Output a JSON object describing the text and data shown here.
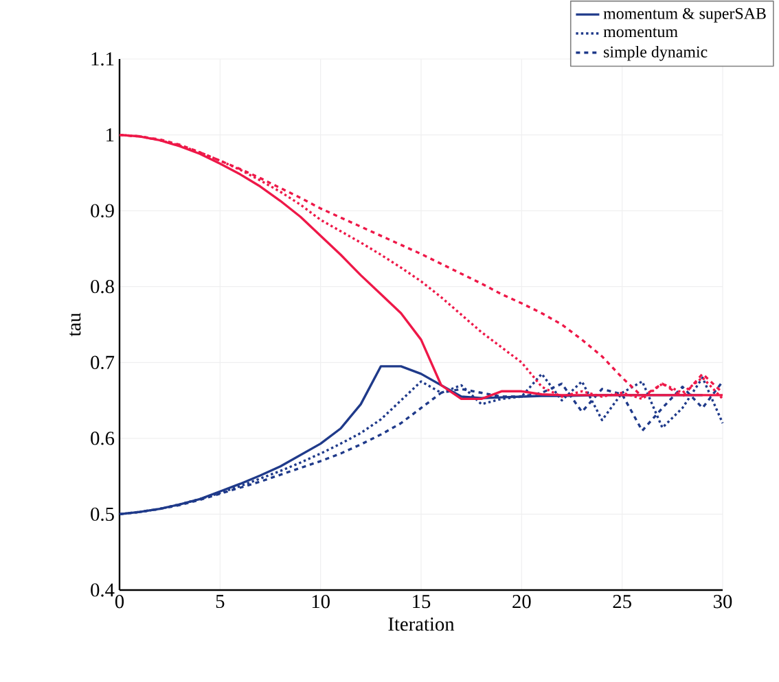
{
  "chart_data": {
    "type": "line",
    "xlabel": "Iteration",
    "ylabel": "tau",
    "x": [
      0,
      1,
      2,
      3,
      4,
      5,
      6,
      7,
      8,
      9,
      10,
      11,
      12,
      13,
      14,
      15,
      16,
      17,
      18,
      19,
      20,
      21,
      22,
      23,
      24,
      25,
      26,
      27,
      28,
      29,
      30
    ],
    "xlim": [
      0,
      30
    ],
    "xticks": [
      0,
      5,
      10,
      15,
      20,
      25,
      30
    ],
    "ylim": [
      0.4,
      1.1
    ],
    "yticks": [
      0.4,
      0.5,
      0.6,
      0.7,
      0.8,
      0.9,
      1,
      1.1
    ],
    "grid": true,
    "legend": "top right",
    "marker": "none",
    "series": [
      {
        "name": "momentum & superSAB",
        "color": "#1f3a8a",
        "line_style": "solid",
        "values": [
          0.5,
          0.503,
          0.507,
          0.513,
          0.52,
          0.53,
          0.54,
          0.551,
          0.563,
          0.578,
          0.593,
          0.613,
          0.645,
          0.695,
          0.695,
          0.685,
          0.67,
          0.655,
          0.653,
          0.654,
          0.655,
          0.656,
          0.656,
          null,
          0.657,
          0.657,
          0.657,
          null,
          0.657,
          0.657,
          null
        ]
      },
      {
        "name": "momentum",
        "color": "#1f3a8a",
        "line_style": "dotted",
        "values": [
          0.5,
          0.503,
          0.507,
          0.513,
          0.52,
          0.528,
          0.537,
          0.547,
          0.557,
          0.568,
          0.58,
          0.593,
          0.607,
          0.625,
          0.65,
          0.675,
          0.66,
          0.67,
          0.645,
          0.652,
          0.655,
          0.685,
          0.65,
          0.675,
          0.624,
          0.66,
          0.675,
          0.614,
          0.64,
          0.68,
          0.62
        ]
      },
      {
        "name": "simple dynamic",
        "color": "#1f3a8a",
        "line_style": "dashed",
        "values": [
          0.5,
          0.503,
          0.507,
          0.512,
          0.519,
          0.527,
          0.535,
          0.543,
          0.552,
          0.561,
          0.57,
          0.58,
          0.592,
          0.605,
          0.62,
          0.64,
          0.66,
          0.665,
          0.66,
          0.655,
          0.655,
          0.66,
          0.672,
          0.635,
          0.665,
          0.658,
          0.61,
          0.64,
          0.668,
          0.64,
          0.675
        ]
      },
      {
        "color": "#ee1848",
        "line_style": "solid",
        "values": [
          1.0,
          0.998,
          0.993,
          0.985,
          0.975,
          0.962,
          0.948,
          0.932,
          0.913,
          0.892,
          0.867,
          0.842,
          0.815,
          0.79,
          0.765,
          0.73,
          0.67,
          0.652,
          0.652,
          0.662,
          0.662,
          0.658,
          0.657,
          0.657,
          0.657,
          0.657,
          0.657,
          0.657,
          0.657,
          0.657,
          0.657
        ]
      },
      {
        "color": "#ee1848",
        "line_style": "dotted",
        "values": [
          1.0,
          0.998,
          0.993,
          0.986,
          0.977,
          0.966,
          0.954,
          0.94,
          0.925,
          0.908,
          0.888,
          0.873,
          0.858,
          0.842,
          0.825,
          0.807,
          0.786,
          0.763,
          0.74,
          0.72,
          0.7,
          0.668,
          0.655,
          0.662,
          0.655,
          0.66,
          0.652,
          0.672,
          0.66,
          0.68,
          0.652
        ]
      },
      {
        "color": "#ee1848",
        "line_style": "dashed",
        "values": [
          1.0,
          0.998,
          0.994,
          0.987,
          0.977,
          0.966,
          0.955,
          0.943,
          0.93,
          0.917,
          0.903,
          0.891,
          0.879,
          0.867,
          0.855,
          0.843,
          0.83,
          0.817,
          0.804,
          0.79,
          0.778,
          0.765,
          0.75,
          0.73,
          0.708,
          0.68,
          0.655,
          0.672,
          0.655,
          0.685,
          0.66
        ]
      }
    ]
  }
}
